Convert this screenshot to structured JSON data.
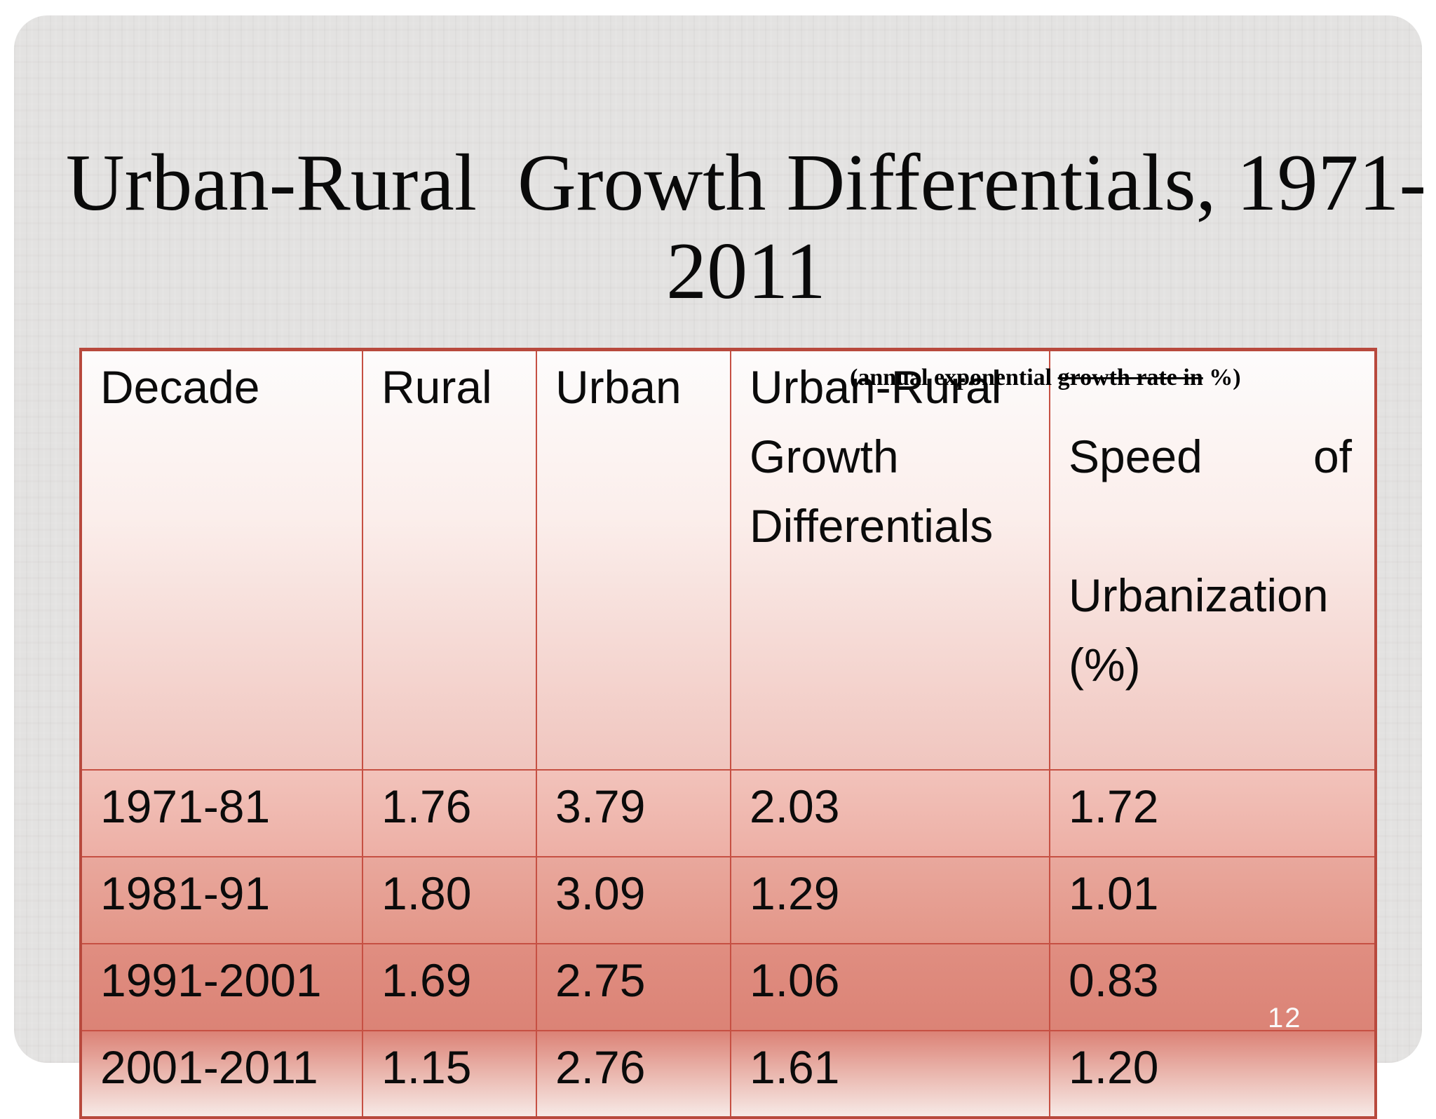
{
  "slide": {
    "title_lines": [
      "Urban-Rural  Growth Differentials, 1971-",
      "2011"
    ],
    "page_number": "12"
  },
  "annotation": {
    "prefix": "(annual exponential ",
    "struck": "growth rate in",
    "suffix": " %)"
  },
  "table": {
    "headers": {
      "decade": "Decade",
      "rural": "Rural",
      "urban": "Urban",
      "growth_differentials": "Urban-Rural\nGrowth\nDifferentials",
      "speed_left": "Speed",
      "speed_right": "of",
      "speed_rest": "Urbanization\n(%)"
    },
    "rows": [
      {
        "decade": "1971-81",
        "rural": "1.76",
        "urban": "3.79",
        "differential": "2.03",
        "speed": "1.72"
      },
      {
        "decade": "1981-91",
        "rural": "1.80",
        "urban": "3.09",
        "differential": "1.29",
        "speed": "1.01"
      },
      {
        "decade": "1991-2001",
        "rural": "1.69",
        "urban": "2.75",
        "differential": "1.06",
        "speed": "0.83"
      },
      {
        "decade": "2001-2011",
        "rural": "1.15",
        "urban": "2.76",
        "differential": "1.61",
        "speed": "1.20"
      }
    ]
  },
  "colors": {
    "slide_background": "#e3e2e1",
    "grid_border": "#c65043",
    "outer_border": "#b8493d",
    "header_gradient_top": "#fdfcfc",
    "header_gradient_bottom": "#f0c5be",
    "row_darkest": "#db8376",
    "last_row_fade_bottom": "#f7ebe8",
    "page_number_color": "#fafafa",
    "text_color": "#000000"
  }
}
